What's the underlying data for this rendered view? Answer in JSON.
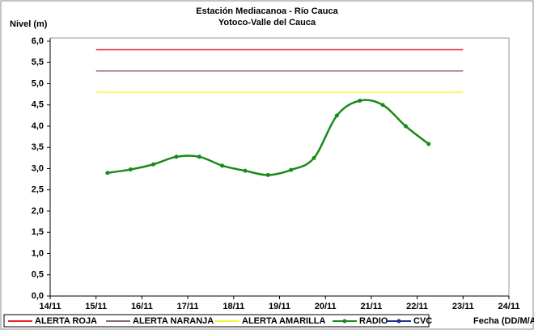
{
  "chart_data": {
    "type": "line",
    "title": "Estación Mediacanoa - Río Cauca",
    "subtitle": "Yotoco-Valle del Cauca",
    "y_label": "Nivel (m)",
    "x_label": "Fecha (DD/M/AA)",
    "xlim": [
      14,
      24
    ],
    "xticks": [
      {
        "value": 14,
        "label": "14/11"
      },
      {
        "value": 15,
        "label": "15/11"
      },
      {
        "value": 16,
        "label": "16/11"
      },
      {
        "value": 17,
        "label": "17/11"
      },
      {
        "value": 18,
        "label": "18/11"
      },
      {
        "value": 19,
        "label": "19/11"
      },
      {
        "value": 20,
        "label": "20/11"
      },
      {
        "value": 21,
        "label": "21/11"
      },
      {
        "value": 22,
        "label": "22/11"
      },
      {
        "value": 23,
        "label": "23/11"
      },
      {
        "value": 24,
        "label": "24/11"
      }
    ],
    "ylim": [
      0,
      6
    ],
    "yticks": [
      {
        "value": 0,
        "label": "0,0"
      },
      {
        "value": 0.5,
        "label": "0,5"
      },
      {
        "value": 1,
        "label": "1,0"
      },
      {
        "value": 1.5,
        "label": "1,5"
      },
      {
        "value": 2,
        "label": "2,0"
      },
      {
        "value": 2.5,
        "label": "2,5"
      },
      {
        "value": 3,
        "label": "3,0"
      },
      {
        "value": 3.5,
        "label": "3,5"
      },
      {
        "value": 4,
        "label": "4,0"
      },
      {
        "value": 4.5,
        "label": "4,5"
      },
      {
        "value": 5,
        "label": "5,0"
      },
      {
        "value": 5.5,
        "label": "5,5"
      },
      {
        "value": 6,
        "label": "6,0"
      }
    ],
    "legend": "bottom",
    "series": [
      {
        "name": "ALERTA ROJA",
        "color": "#e8202a",
        "x": [
          15,
          23
        ],
        "values": [
          5.8,
          5.8
        ]
      },
      {
        "name": "ALERTA NARANJA",
        "color": "#8c6a6a",
        "x": [
          15,
          23
        ],
        "values": [
          5.3,
          5.3
        ]
      },
      {
        "name": "ALERTA AMARILLA",
        "color": "#f5f53a",
        "x": [
          15,
          23
        ],
        "values": [
          4.8,
          4.8
        ]
      },
      {
        "name": "RADIO",
        "color": "#1a8a1a",
        "smooth": true,
        "marker": true,
        "x": [
          15.25,
          15.75,
          16.25,
          16.75,
          17.25,
          17.75,
          18.25,
          18.75,
          19.25,
          19.75,
          20.25,
          20.75,
          21.25,
          21.75,
          22.25
        ],
        "values": [
          2.9,
          2.98,
          3.1,
          3.28,
          3.28,
          3.07,
          2.95,
          2.85,
          2.97,
          3.25,
          4.25,
          4.6,
          4.5,
          4.0,
          3.58
        ]
      },
      {
        "name": "CVC",
        "color": "#1f2f9a",
        "marker": true,
        "x": [],
        "values": []
      }
    ]
  }
}
